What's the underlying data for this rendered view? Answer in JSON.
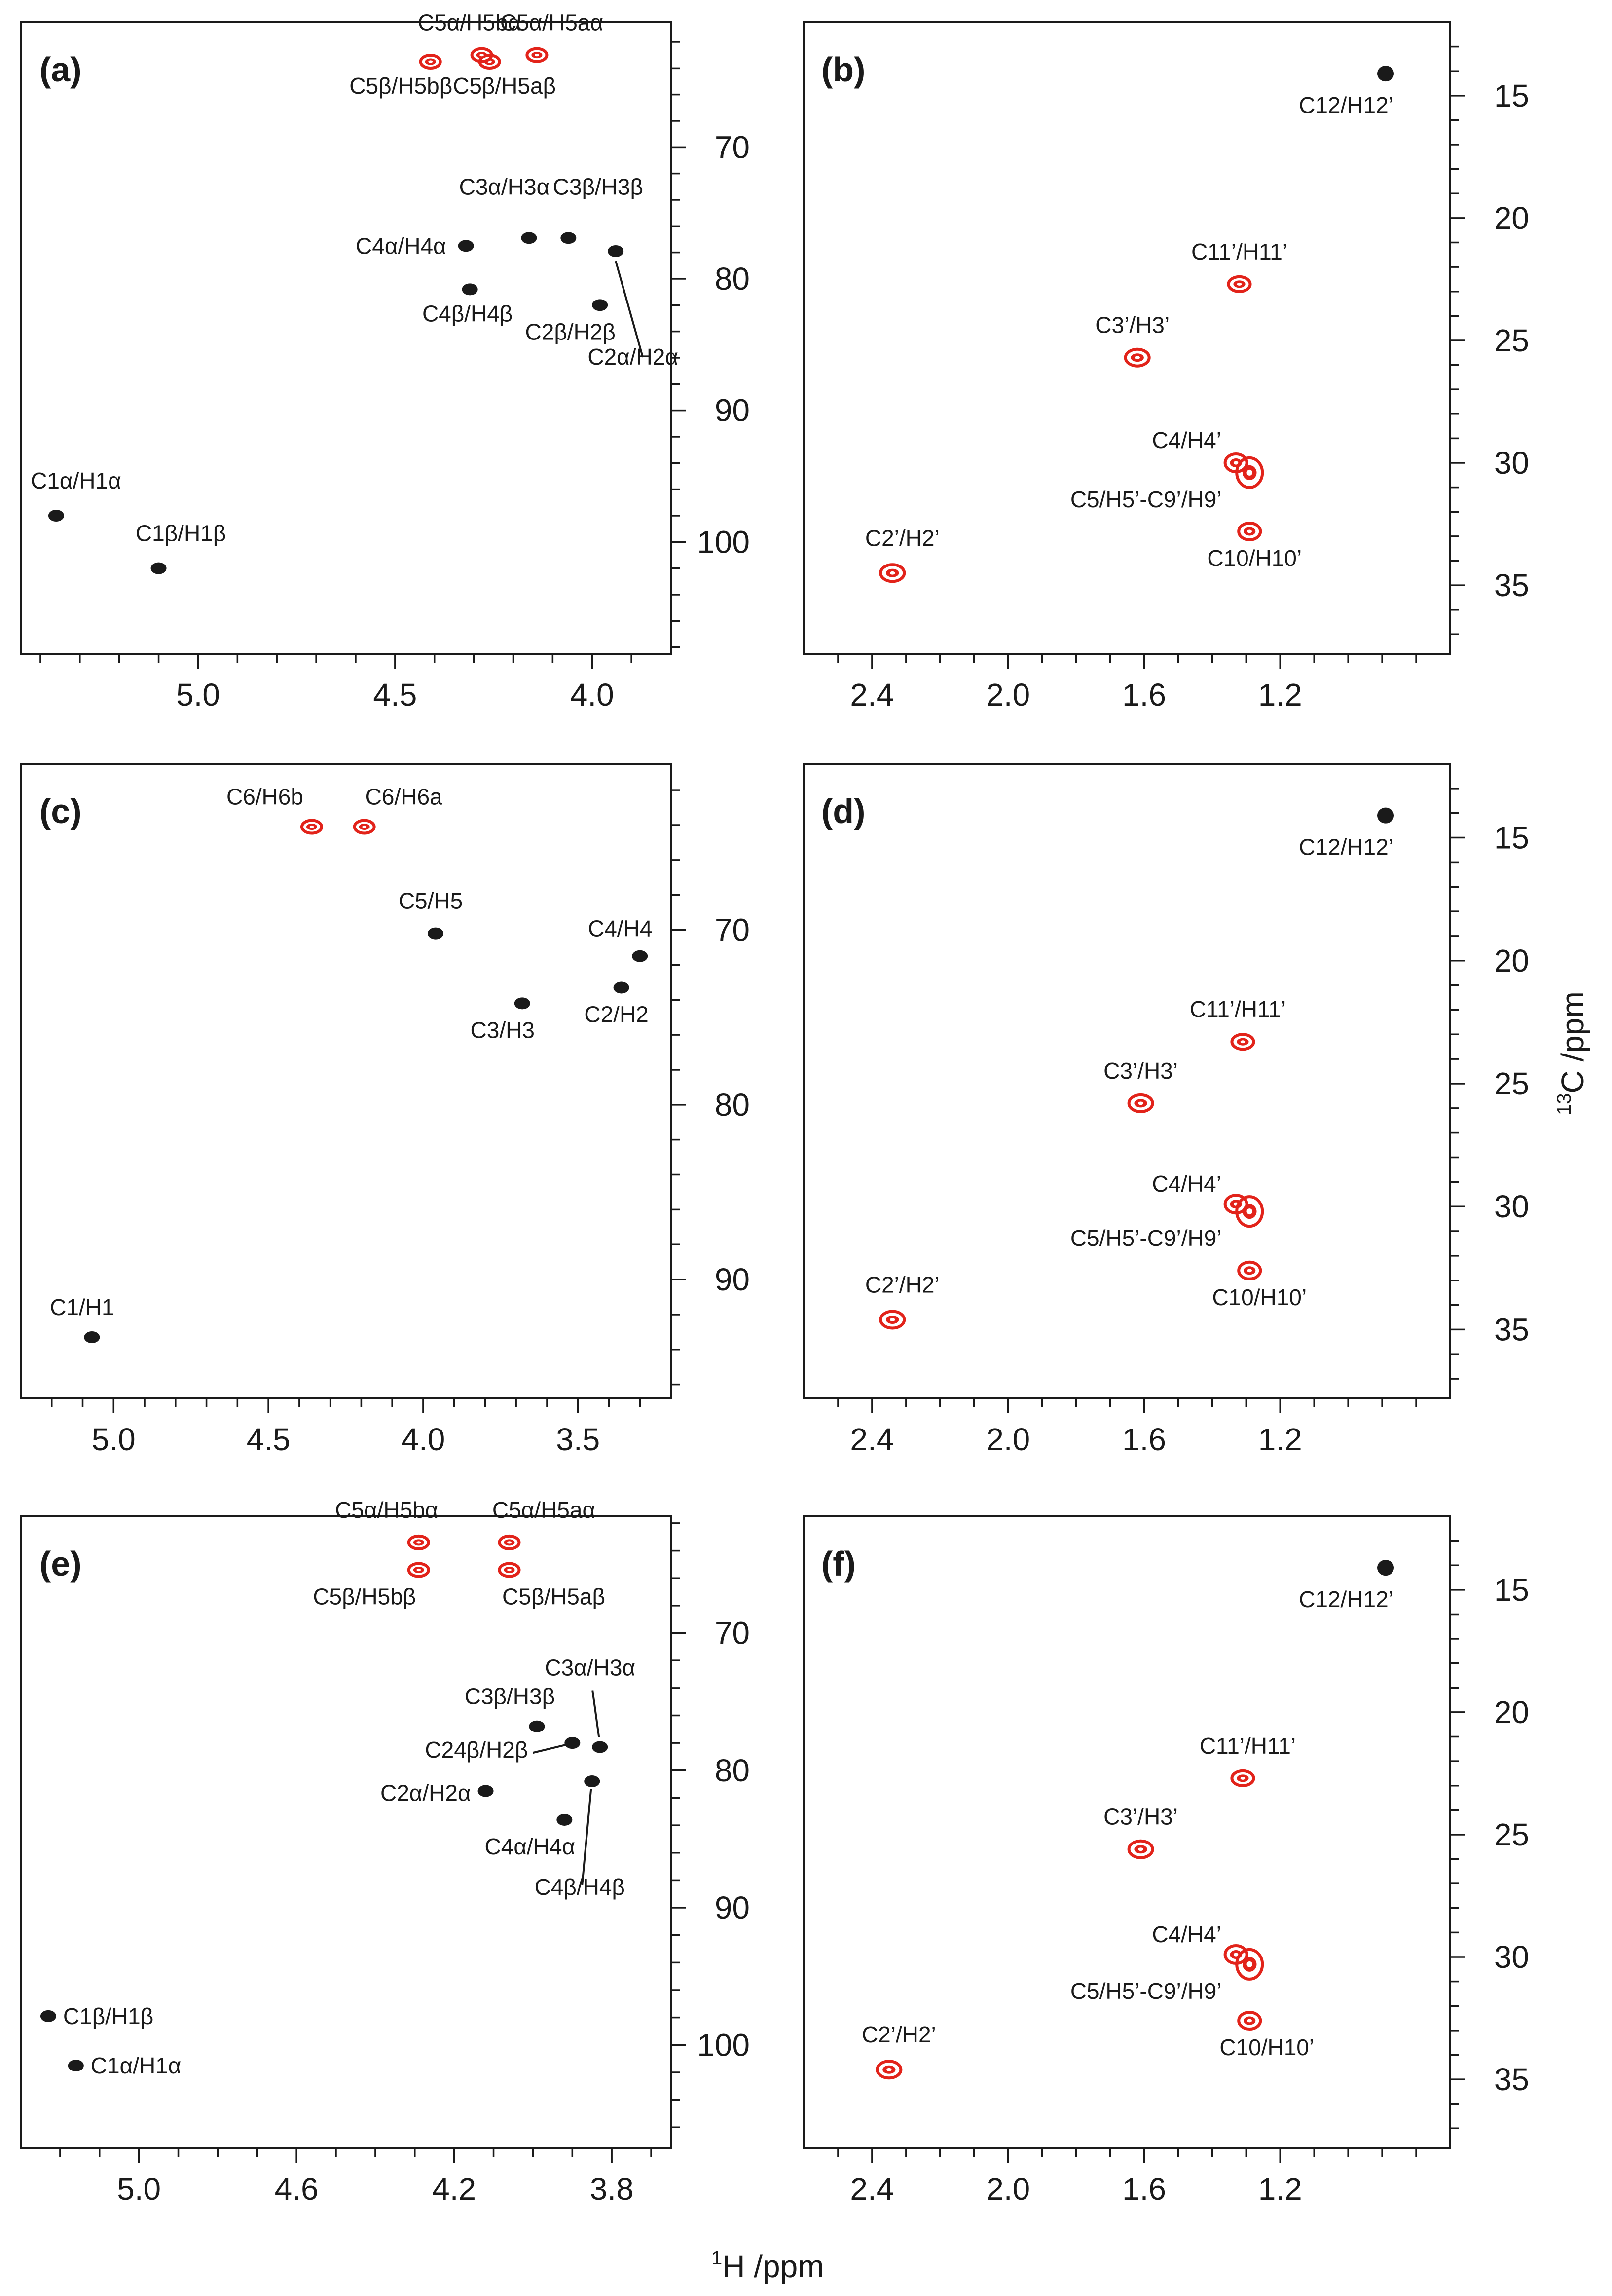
{
  "figure": {
    "x_axis_label": {
      "pre": "1",
      "post": "H /ppm"
    },
    "y_axis_label": {
      "pre": "13",
      "post": "C /ppm"
    },
    "colors": {
      "positive": "#1a1a1a",
      "negative": "#e2231a",
      "axis": "#1a1a1a"
    }
  },
  "chart_data": [
    {
      "id": "a",
      "type": "scatter",
      "title": "(a)",
      "xlim": [
        5.45,
        3.8
      ],
      "ylim": [
        60.5,
        108.5
      ],
      "xticks_labeled": [
        5.0,
        4.5,
        4.0
      ],
      "xtick_label_text": [
        "5.0",
        "4.5",
        "4.0"
      ],
      "xtick_minor_step": 0.1,
      "yticks_labeled": [
        70,
        80,
        90,
        100
      ],
      "ytick_label_text": [
        "70",
        "80",
        "90",
        "100"
      ],
      "ytick_minor_step": 2,
      "peaks": [
        {
          "x": 4.41,
          "y": 63.5,
          "sign": "negative",
          "label": "C5β/H5bβ"
        },
        {
          "x": 4.26,
          "y": 63.5,
          "sign": "negative",
          "label": "C5β/H5aβ"
        },
        {
          "x": 4.28,
          "y": 63.0,
          "sign": "negative",
          "label": "C5α/H5bα"
        },
        {
          "x": 4.14,
          "y": 63.0,
          "sign": "negative",
          "label": "C5α/H5aα"
        },
        {
          "x": 4.16,
          "y": 76.9,
          "sign": "positive",
          "label": "C3α/H3α"
        },
        {
          "x": 4.06,
          "y": 76.9,
          "sign": "positive",
          "label": "C3β/H3β"
        },
        {
          "x": 4.32,
          "y": 77.5,
          "sign": "positive",
          "label": "C4α/H4α"
        },
        {
          "x": 3.94,
          "y": 77.9,
          "sign": "positive",
          "label": "C2α/H2α"
        },
        {
          "x": 4.31,
          "y": 80.8,
          "sign": "positive",
          "label": "C4β/H4β"
        },
        {
          "x": 3.98,
          "y": 82.0,
          "sign": "positive",
          "label": "C2β/H2β"
        },
        {
          "x": 5.36,
          "y": 98.0,
          "sign": "positive",
          "label": "C1α/H1α"
        },
        {
          "x": 5.1,
          "y": 102.0,
          "sign": "positive",
          "label": "C1β/H1β"
        }
      ]
    },
    {
      "id": "b",
      "type": "scatter",
      "title": "(b)",
      "xlim": [
        2.6,
        0.7
      ],
      "ylim": [
        12.0,
        37.8
      ],
      "xticks_labeled": [
        2.4,
        2.0,
        1.6,
        1.2
      ],
      "xtick_label_text": [
        "2.4",
        "2.0",
        "1.6",
        "1.2"
      ],
      "xtick_minor_step": 0.1,
      "yticks_labeled": [
        15,
        20,
        25,
        30,
        35
      ],
      "ytick_label_text": [
        "15",
        "20",
        "25",
        "30",
        "35"
      ],
      "ytick_minor_step": 1,
      "peaks": [
        {
          "x": 0.89,
          "y": 14.1,
          "sign": "positive",
          "label": "C12/H12’"
        },
        {
          "x": 1.32,
          "y": 22.7,
          "sign": "negative",
          "label": "C11’/H11’"
        },
        {
          "x": 1.62,
          "y": 25.7,
          "sign": "negative",
          "label": "C3’/H3’"
        },
        {
          "x": 1.33,
          "y": 30.0,
          "sign": "negative",
          "label": "C4/H4’"
        },
        {
          "x": 1.29,
          "y": 30.4,
          "sign": "negative",
          "label": "C5/H5’-C9’/H9’"
        },
        {
          "x": 1.29,
          "y": 32.8,
          "sign": "negative",
          "label": "C10/H10’"
        },
        {
          "x": 2.34,
          "y": 34.5,
          "sign": "negative",
          "label": "C2’/H2’"
        }
      ]
    },
    {
      "id": "c",
      "type": "scatter",
      "title": "(c)",
      "xlim": [
        5.3,
        3.2
      ],
      "ylim": [
        60.5,
        96.8
      ],
      "xticks_labeled": [
        5.0,
        4.5,
        4.0,
        3.5
      ],
      "xtick_label_text": [
        "5.0",
        "4.5",
        "4.0",
        "3.5"
      ],
      "xtick_minor_step": 0.1,
      "yticks_labeled": [
        70,
        80,
        90
      ],
      "ytick_label_text": [
        "70",
        "80",
        "90"
      ],
      "ytick_minor_step": 2,
      "peaks": [
        {
          "x": 4.36,
          "y": 64.1,
          "sign": "negative",
          "label": "C6/H6b"
        },
        {
          "x": 4.19,
          "y": 64.1,
          "sign": "negative",
          "label": "C6/H6a"
        },
        {
          "x": 3.96,
          "y": 70.2,
          "sign": "positive",
          "label": "C5/H5"
        },
        {
          "x": 3.3,
          "y": 71.5,
          "sign": "positive",
          "label": "C4/H4"
        },
        {
          "x": 3.36,
          "y": 73.3,
          "sign": "positive",
          "label": "C2/H2"
        },
        {
          "x": 3.68,
          "y": 74.2,
          "sign": "positive",
          "label": "C3/H3"
        },
        {
          "x": 5.07,
          "y": 93.3,
          "sign": "positive",
          "label": "C1/H1"
        }
      ]
    },
    {
      "id": "d",
      "type": "scatter",
      "title": "(d)",
      "xlim": [
        2.6,
        0.7
      ],
      "ylim": [
        12.0,
        37.8
      ],
      "xticks_labeled": [
        2.4,
        2.0,
        1.6,
        1.2
      ],
      "xtick_label_text": [
        "2.4",
        "2.0",
        "1.6",
        "1.2"
      ],
      "xtick_minor_step": 0.1,
      "yticks_labeled": [
        15,
        20,
        25,
        30,
        35
      ],
      "ytick_label_text": [
        "15",
        "20",
        "25",
        "30",
        "35"
      ],
      "ytick_minor_step": 1,
      "peaks": [
        {
          "x": 0.89,
          "y": 14.1,
          "sign": "positive",
          "label": "C12/H12’"
        },
        {
          "x": 1.31,
          "y": 23.3,
          "sign": "negative",
          "label": "C11’/H11’"
        },
        {
          "x": 1.61,
          "y": 25.8,
          "sign": "negative",
          "label": "C3’/H3’"
        },
        {
          "x": 1.33,
          "y": 29.9,
          "sign": "negative",
          "label": "C4/H4’"
        },
        {
          "x": 1.29,
          "y": 30.2,
          "sign": "negative",
          "label": "C5/H5’-C9’/H9’"
        },
        {
          "x": 1.29,
          "y": 32.6,
          "sign": "negative",
          "label": "C10/H10’"
        },
        {
          "x": 2.34,
          "y": 34.6,
          "sign": "negative",
          "label": "C2’/H2’"
        }
      ]
    },
    {
      "id": "e",
      "type": "scatter",
      "title": "(e)",
      "xlim": [
        5.3,
        3.65
      ],
      "ylim": [
        61.5,
        107.5
      ],
      "xticks_labeled": [
        5.0,
        4.6,
        4.2,
        3.8
      ],
      "xtick_label_text": [
        "5.0",
        "4.6",
        "4.2",
        "3.8"
      ],
      "xtick_minor_step": 0.1,
      "yticks_labeled": [
        70,
        80,
        90,
        100
      ],
      "ytick_label_text": [
        "70",
        "80",
        "90",
        "100"
      ],
      "ytick_minor_step": 2,
      "peaks": [
        {
          "x": 4.29,
          "y": 63.4,
          "sign": "negative",
          "label": "C5α/H5bα"
        },
        {
          "x": 4.06,
          "y": 63.4,
          "sign": "negative",
          "label": "C5α/H5aα"
        },
        {
          "x": 4.29,
          "y": 65.4,
          "sign": "negative",
          "label": "C5β/H5bβ"
        },
        {
          "x": 4.06,
          "y": 65.4,
          "sign": "negative",
          "label": "C5β/H5aβ"
        },
        {
          "x": 3.83,
          "y": 78.3,
          "sign": "positive",
          "label": "C3α/H3α"
        },
        {
          "x": 3.99,
          "y": 76.8,
          "sign": "positive",
          "label": "C3β/H3β"
        },
        {
          "x": 3.9,
          "y": 78.0,
          "sign": "positive",
          "label": "C24β/H2β"
        },
        {
          "x": 3.85,
          "y": 80.8,
          "sign": "positive",
          "label": "C4β/H4β"
        },
        {
          "x": 4.12,
          "y": 81.5,
          "sign": "positive",
          "label": "C2α/H2α"
        },
        {
          "x": 3.92,
          "y": 83.6,
          "sign": "positive",
          "label": "C4α/H4α"
        },
        {
          "x": 5.23,
          "y": 97.9,
          "sign": "positive",
          "label": "C1β/H1β"
        },
        {
          "x": 5.16,
          "y": 101.5,
          "sign": "positive",
          "label": "C1α/H1α"
        }
      ]
    },
    {
      "id": "f",
      "type": "scatter",
      "title": "(f)",
      "xlim": [
        2.6,
        0.7
      ],
      "ylim": [
        12.0,
        37.8
      ],
      "xticks_labeled": [
        2.4,
        2.0,
        1.6,
        1.2
      ],
      "xtick_label_text": [
        "2.4",
        "2.0",
        "1.6",
        "1.2"
      ],
      "xtick_minor_step": 0.1,
      "yticks_labeled": [
        15,
        20,
        25,
        30,
        35
      ],
      "ytick_label_text": [
        "15",
        "20",
        "25",
        "30",
        "35"
      ],
      "ytick_minor_step": 1,
      "peaks": [
        {
          "x": 0.89,
          "y": 14.1,
          "sign": "positive",
          "label": "C12/H12’"
        },
        {
          "x": 1.31,
          "y": 22.7,
          "sign": "negative",
          "label": "C11’/H11’"
        },
        {
          "x": 1.61,
          "y": 25.6,
          "sign": "negative",
          "label": "C3’/H3’"
        },
        {
          "x": 1.33,
          "y": 29.9,
          "sign": "negative",
          "label": "C4/H4’"
        },
        {
          "x": 1.29,
          "y": 30.3,
          "sign": "negative",
          "label": "C5/H5’-C9’/H9’"
        },
        {
          "x": 1.29,
          "y": 32.6,
          "sign": "negative",
          "label": "C10/H10’"
        },
        {
          "x": 2.35,
          "y": 34.6,
          "sign": "negative",
          "label": "C2’/H2’"
        }
      ]
    }
  ]
}
